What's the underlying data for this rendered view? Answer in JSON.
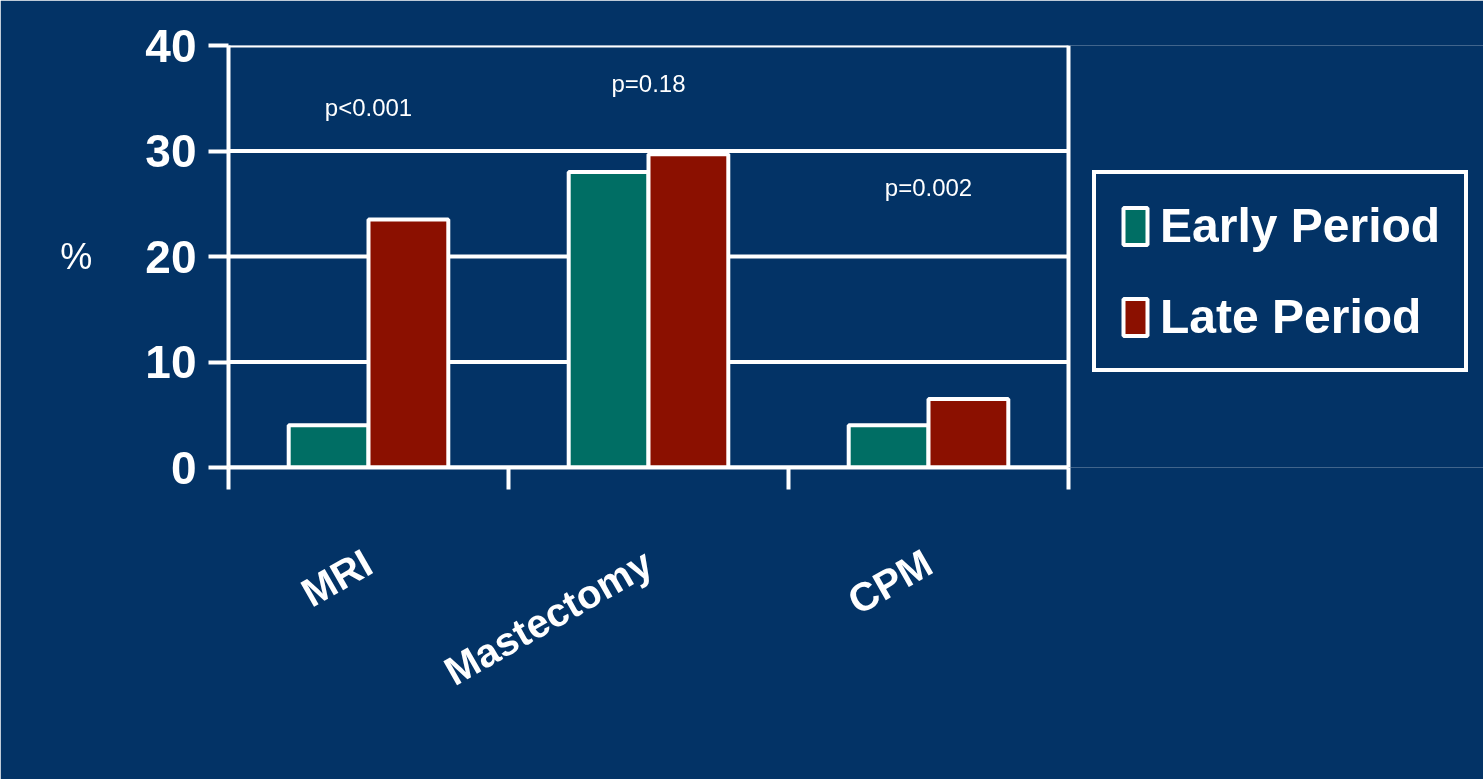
{
  "chart_data": {
    "type": "bar",
    "categories": [
      "MRI",
      "Mastectomy",
      "CPM"
    ],
    "series": [
      {
        "name": "Early Period",
        "color": "#006e64",
        "values": [
          4,
          28,
          4
        ]
      },
      {
        "name": "Late Period",
        "color": "#8b1000",
        "values": [
          23.5,
          29.7,
          6.5
        ]
      }
    ],
    "ylabel": "%",
    "ylim": [
      0,
      40
    ],
    "yticks": [
      0,
      10,
      20,
      30,
      40
    ],
    "grid": "y",
    "legend": "right",
    "annotations": [
      "p<0.001",
      "p=0.18",
      "p=0.002"
    ]
  }
}
